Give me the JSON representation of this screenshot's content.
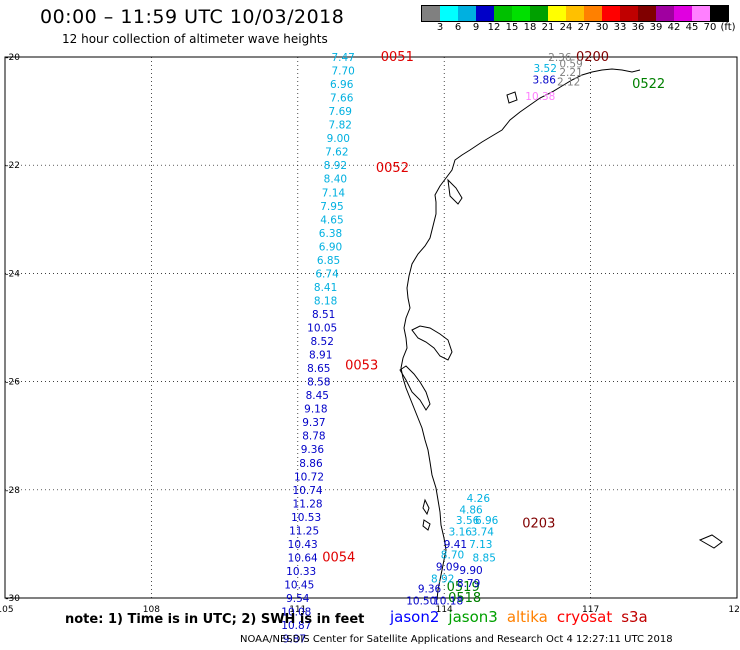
{
  "title": "00:00 – 11:59 UTC 10/03/2018",
  "subtitle": "12 hour collection of altimeter wave heights",
  "legend": {
    "colors": [
      "#808080",
      "#00ffff",
      "#00b0e0",
      "#0000c8",
      "#00c000",
      "#00e000",
      "#00a000",
      "#ffff00",
      "#ffc000",
      "#ff8000",
      "#ff0000",
      "#c00000",
      "#800000",
      "#a000a0",
      "#e000e0",
      "#ff80ff",
      "#000000"
    ],
    "labels": [
      "3",
      "6",
      "9",
      "12",
      "15",
      "18",
      "21",
      "24",
      "27",
      "30",
      "33",
      "36",
      "39",
      "42",
      "45",
      "70",
      "(ft)"
    ]
  },
  "chart_data": {
    "type": "scatter",
    "x_range": [
      105,
      120
    ],
    "y_range": [
      -30,
      -20
    ],
    "x_ticks": [
      "105",
      "108",
      "111",
      "114",
      "117",
      "120"
    ],
    "y_ticks": [
      "-20",
      "-22",
      "-24",
      "-26",
      "-28",
      "-30"
    ],
    "grid": true,
    "series": [
      {
        "name": "jason2",
        "color": "#0000c8"
      },
      {
        "name": "jason3",
        "color": "#00a000"
      },
      {
        "name": "altika",
        "color": "#ff8000"
      },
      {
        "name": "cryosat",
        "color": "#ff0000"
      },
      {
        "name": "s3a",
        "color": "#c00000"
      }
    ],
    "pass_labels": [
      {
        "text": "0051",
        "lon": 112.7,
        "lat": -20.0,
        "color": "#e00000"
      },
      {
        "text": "0052",
        "lon": 112.6,
        "lat": -22.05,
        "color": "#e00000"
      },
      {
        "text": "0053",
        "lon": 111.97,
        "lat": -25.7,
        "color": "#e00000"
      },
      {
        "text": "0054",
        "lon": 111.5,
        "lat": -29.25,
        "color": "#e00000"
      },
      {
        "text": "0200",
        "lon": 116.7,
        "lat": -20.0,
        "color": "#800000"
      },
      {
        "text": "0522",
        "lon": 117.85,
        "lat": -20.5,
        "color": "#008000"
      },
      {
        "text": "0203",
        "lon": 115.6,
        "lat": -28.62,
        "color": "#800000"
      },
      {
        "text": "0519",
        "lon": 114.05,
        "lat": -29.8,
        "color": "#008000"
      },
      {
        "text": "0518",
        "lon": 114.08,
        "lat": -30.0,
        "color": "#008000"
      }
    ],
    "points": [
      {
        "lon": 111.93,
        "lat": -20.0,
        "v": "7.47",
        "c": "#00b0e0"
      },
      {
        "lon": 111.93,
        "lat": -20.25,
        "v": "7.70",
        "c": "#00b0e0"
      },
      {
        "lon": 111.9,
        "lat": -20.5,
        "v": "6.96",
        "c": "#00b0e0"
      },
      {
        "lon": 111.9,
        "lat": -20.75,
        "v": "7.66",
        "c": "#00b0e0"
      },
      {
        "lon": 111.87,
        "lat": -21.0,
        "v": "7.69",
        "c": "#00b0e0"
      },
      {
        "lon": 111.87,
        "lat": -21.25,
        "v": "7.82",
        "c": "#00b0e0"
      },
      {
        "lon": 111.83,
        "lat": -21.5,
        "v": "9.00",
        "c": "#00b0e0"
      },
      {
        "lon": 111.8,
        "lat": -21.75,
        "v": "7.62",
        "c": "#00b0e0"
      },
      {
        "lon": 111.77,
        "lat": -22.0,
        "v": "8.92",
        "c": "#00b0e0"
      },
      {
        "lon": 111.77,
        "lat": -22.25,
        "v": "8.40",
        "c": "#00b0e0"
      },
      {
        "lon": 111.73,
        "lat": -22.5,
        "v": "7.14",
        "c": "#00b0e0"
      },
      {
        "lon": 111.7,
        "lat": -22.75,
        "v": "7.95",
        "c": "#00b0e0"
      },
      {
        "lon": 111.7,
        "lat": -23.0,
        "v": "4.65",
        "c": "#00b0e0"
      },
      {
        "lon": 111.67,
        "lat": -23.25,
        "v": "6.38",
        "c": "#00b0e0"
      },
      {
        "lon": 111.67,
        "lat": -23.5,
        "v": "6.90",
        "c": "#00b0e0"
      },
      {
        "lon": 111.63,
        "lat": -23.75,
        "v": "6.85",
        "c": "#00b0e0"
      },
      {
        "lon": 111.6,
        "lat": -24.0,
        "v": "6.74",
        "c": "#00b0e0"
      },
      {
        "lon": 111.57,
        "lat": -24.25,
        "v": "8.41",
        "c": "#00b0e0"
      },
      {
        "lon": 111.57,
        "lat": -24.5,
        "v": "8.18",
        "c": "#00b0e0"
      },
      {
        "lon": 111.53,
        "lat": -24.75,
        "v": "8.51",
        "c": "#0000c8"
      },
      {
        "lon": 111.5,
        "lat": -25.0,
        "v": "10.05",
        "c": "#0000c8"
      },
      {
        "lon": 111.5,
        "lat": -25.25,
        "v": "8.52",
        "c": "#0000c8"
      },
      {
        "lon": 111.47,
        "lat": -25.5,
        "v": "8.91",
        "c": "#0000c8"
      },
      {
        "lon": 111.43,
        "lat": -25.75,
        "v": "8.65",
        "c": "#0000c8"
      },
      {
        "lon": 111.43,
        "lat": -26.0,
        "v": "8.58",
        "c": "#0000c8"
      },
      {
        "lon": 111.4,
        "lat": -26.25,
        "v": "8.45",
        "c": "#0000c8"
      },
      {
        "lon": 111.37,
        "lat": -26.5,
        "v": "9.18",
        "c": "#0000c8"
      },
      {
        "lon": 111.33,
        "lat": -26.75,
        "v": "9.37",
        "c": "#0000c8"
      },
      {
        "lon": 111.33,
        "lat": -27.0,
        "v": "8.78",
        "c": "#0000c8"
      },
      {
        "lon": 111.3,
        "lat": -27.25,
        "v": "9.36",
        "c": "#0000c8"
      },
      {
        "lon": 111.27,
        "lat": -27.5,
        "v": "8.86",
        "c": "#0000c8"
      },
      {
        "lon": 111.23,
        "lat": -27.75,
        "v": "10.72",
        "c": "#0000c8"
      },
      {
        "lon": 111.2,
        "lat": -28.0,
        "v": "10.74",
        "c": "#0000c8"
      },
      {
        "lon": 111.2,
        "lat": -28.25,
        "v": "11.28",
        "c": "#0000c8"
      },
      {
        "lon": 111.17,
        "lat": -28.5,
        "v": "10.53",
        "c": "#0000c8"
      },
      {
        "lon": 111.13,
        "lat": -28.75,
        "v": "11.25",
        "c": "#0000c8"
      },
      {
        "lon": 111.1,
        "lat": -29.0,
        "v": "10.43",
        "c": "#0000c8"
      },
      {
        "lon": 111.1,
        "lat": -29.25,
        "v": "10.64",
        "c": "#0000c8"
      },
      {
        "lon": 111.07,
        "lat": -29.5,
        "v": "10.33",
        "c": "#0000c8"
      },
      {
        "lon": 111.03,
        "lat": -29.75,
        "v": "10.45",
        "c": "#0000c8"
      },
      {
        "lon": 111.0,
        "lat": -30.0,
        "v": "9.54",
        "c": "#0000c8"
      },
      {
        "lon": 110.97,
        "lat": -30.25,
        "v": "10.08",
        "c": "#0000c8"
      },
      {
        "lon": 110.97,
        "lat": -30.5,
        "v": "10.87",
        "c": "#0000c8"
      },
      {
        "lon": 110.93,
        "lat": -30.75,
        "v": "9.87",
        "c": "#0000c8"
      },
      {
        "lon": 116.37,
        "lat": -20.0,
        "v": "2.36",
        "c": "#808080"
      },
      {
        "lon": 116.6,
        "lat": -20.12,
        "v": "0.59",
        "c": "#808080"
      },
      {
        "lon": 116.6,
        "lat": -20.28,
        "v": "2.21",
        "c": "#808080"
      },
      {
        "lon": 116.55,
        "lat": -20.45,
        "v": "2.12",
        "c": "#808080"
      },
      {
        "lon": 116.07,
        "lat": -20.2,
        "v": "3.52",
        "c": "#00b0e0"
      },
      {
        "lon": 116.05,
        "lat": -20.42,
        "v": "3.86",
        "c": "#0000c8"
      },
      {
        "lon": 115.97,
        "lat": -20.72,
        "v": "10.38",
        "c": "#ff80ff"
      },
      {
        "lon": 114.7,
        "lat": -28.15,
        "v": "4.26",
        "c": "#00b0e0"
      },
      {
        "lon": 114.55,
        "lat": -28.36,
        "v": "4.86",
        "c": "#00b0e0"
      },
      {
        "lon": 114.48,
        "lat": -28.56,
        "v": "3.56",
        "c": "#00b0e0"
      },
      {
        "lon": 114.87,
        "lat": -28.56,
        "v": "6.96",
        "c": "#00b0e0"
      },
      {
        "lon": 114.33,
        "lat": -28.77,
        "v": "3.16",
        "c": "#00b0e0"
      },
      {
        "lon": 114.78,
        "lat": -28.77,
        "v": "3.74",
        "c": "#00b0e0"
      },
      {
        "lon": 114.23,
        "lat": -29.0,
        "v": "9.41",
        "c": "#0000c8"
      },
      {
        "lon": 114.75,
        "lat": -29.0,
        "v": "7.13",
        "c": "#00b0e0"
      },
      {
        "lon": 114.17,
        "lat": -29.2,
        "v": "8.70",
        "c": "#00b0e0"
      },
      {
        "lon": 114.82,
        "lat": -29.25,
        "v": "8.85",
        "c": "#00b0e0"
      },
      {
        "lon": 114.07,
        "lat": -29.42,
        "v": "9.09",
        "c": "#0000c8"
      },
      {
        "lon": 114.55,
        "lat": -29.48,
        "v": "9.90",
        "c": "#0000c8"
      },
      {
        "lon": 113.97,
        "lat": -29.64,
        "v": "8.92",
        "c": "#00b0e0"
      },
      {
        "lon": 114.5,
        "lat": -29.72,
        "v": "8.79",
        "c": "#0000c8"
      },
      {
        "lon": 113.7,
        "lat": -29.82,
        "v": "9.36",
        "c": "#0000c8"
      },
      {
        "lon": 113.53,
        "lat": -30.05,
        "v": "10.50",
        "c": "#0000c8"
      },
      {
        "lon": 114.08,
        "lat": -30.05,
        "v": "10.18",
        "c": "#0000c8"
      }
    ]
  },
  "note": "note: 1) Time is in UTC; 2) SWH is in feet",
  "satellites": [
    {
      "name": "jason2",
      "color": "#0000ff"
    },
    {
      "name": "jason3",
      "color": "#00a000"
    },
    {
      "name": "altika",
      "color": "#ff8000"
    },
    {
      "name": "cryosat",
      "color": "#ff0000"
    },
    {
      "name": "s3a",
      "color": "#c00000"
    }
  ],
  "footer": "NOAA/NESDIS Center for Satellite Applications and Research   Oct  4 12:27:11 UTC 2018"
}
